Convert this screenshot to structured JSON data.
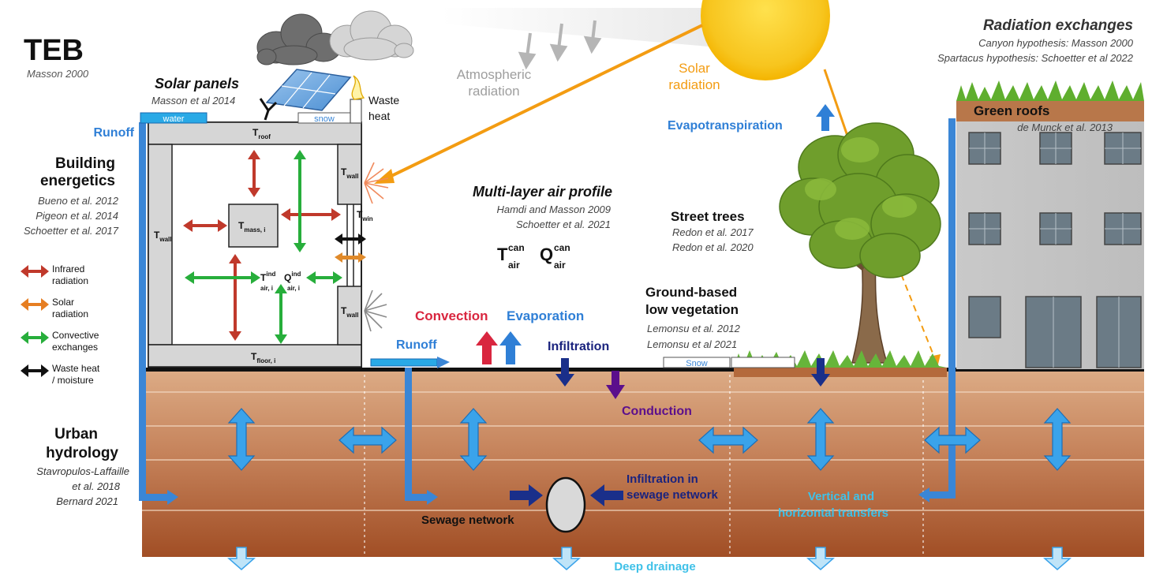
{
  "title": "TEB",
  "title_ref": "Masson 2000",
  "radiation": {
    "title": "Radiation exchanges",
    "ref1": "Canyon hypothesis: Masson 2000",
    "ref2": "Spartacus hypothesis: Schoetter et al 2022",
    "solar_line1": "Solar",
    "solar_line2": "radiation",
    "atmo_line1": "Atmospheric",
    "atmo_line2": "radiation"
  },
  "solar_panels": {
    "title": "Solar panels",
    "ref": "Masson et al 2014"
  },
  "waste_heat": {
    "line1": "Waste",
    "line2": "heat"
  },
  "roof_water": "water",
  "roof_snow": "snow",
  "runoff_left": "Runoff",
  "building": {
    "title_line1": "Building",
    "title_line2": "energetics",
    "ref1": "Bueno et al. 2012",
    "ref2": "Pigeon et al. 2014",
    "ref3": "Schoetter et al. 2017"
  },
  "temps": {
    "T": "T",
    "roof": "roof",
    "wall": "wall",
    "win": "win",
    "mass": "mass, i",
    "air_ind_sup": "ind",
    "air_ind_sub": "air, i",
    "floor": "floor, i",
    "Q": "Q",
    "can": "can",
    "air": "air"
  },
  "legend": [
    {
      "line1": "Infrared",
      "line2": "radiation",
      "color": "#c0392b"
    },
    {
      "line1": "Solar",
      "line2": "radiation",
      "color": "#e67e22"
    },
    {
      "line1": "Convective",
      "line2": "exchanges",
      "color": "#27ae3b"
    },
    {
      "line1": "Waste heat",
      "line2": "/ moisture",
      "color": "#111111"
    }
  ],
  "air_profile": {
    "title": "Multi-layer air profile",
    "ref1": "Hamdi and Masson 2009",
    "ref2": "Schoetter et al. 2021"
  },
  "evapotranspiration": "Evapotranspiration",
  "green_roofs": {
    "title": "Green roofs",
    "ref": "de Munck et al. 2013"
  },
  "street_trees": {
    "title": "Street trees",
    "ref1": "Redon et al. 2017",
    "ref2": "Redon et al. 2020"
  },
  "low_veg": {
    "title_line1": "Ground-based",
    "title_line2": "low vegetation",
    "ref1": "Lemonsu et al. 2012",
    "ref2": "Lemonsu et al 2021"
  },
  "convection": "Convection",
  "evaporation": "Evaporation",
  "runoff_mid": "Runoff",
  "infiltration": "Infiltration",
  "ground_snow": "Snow",
  "conduction": "Conduction",
  "hydrology": {
    "title_line1": "Urban",
    "title_line2": "hydrology",
    "ref1": "Stavropulos-Laffaille",
    "ref2": "et al. 2018",
    "ref3": "Bernard 2021"
  },
  "sewage": {
    "network": "Sewage network",
    "infil_line1": "Infiltration in",
    "infil_line2": "sewage network"
  },
  "transfers": {
    "line1": "Vertical and",
    "line2": "horizontal transfers"
  },
  "deep_drainage": "Deep drainage",
  "colors": {
    "soil_top": "#d9a27a",
    "soil_bottom": "#a4532a",
    "water_blue": "#3aa3ea",
    "title_blue": "#2f7fd6",
    "navy": "#1a237e",
    "purple": "#5b0f8c",
    "red": "#d9263f",
    "orange": "#f39c12",
    "cyan": "#3fc1e8"
  }
}
